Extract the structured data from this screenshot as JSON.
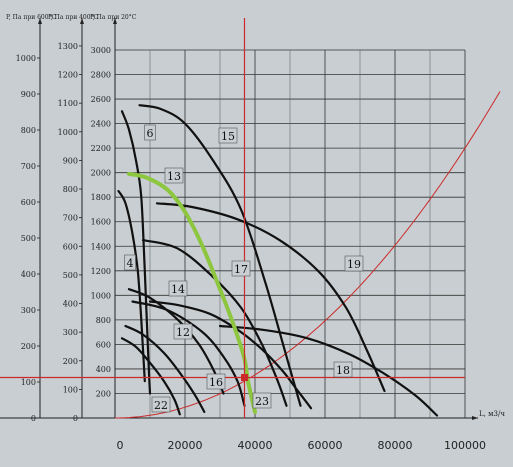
{
  "chart_data": {
    "type": "line",
    "title": "",
    "axes": {
      "y_headers": [
        "P, Па при 600°C",
        "P, Па при 400°C",
        "P, Па при 20°C"
      ],
      "y_ticks_600": [
        0,
        100,
        200,
        300,
        400,
        500,
        600,
        700,
        800,
        900,
        1000
      ],
      "y_ticks_400": [
        0,
        100,
        200,
        300,
        400,
        500,
        600,
        700,
        800,
        900,
        1000,
        1100,
        1200,
        1300
      ],
      "y_ticks_20": [
        200,
        400,
        600,
        800,
        1000,
        1200,
        1400,
        1600,
        1800,
        2000,
        2200,
        2400,
        2600,
        2800,
        3000
      ],
      "ylim_20": [
        0,
        3000
      ],
      "x_ticks": [
        0,
        20000,
        40000,
        60000,
        80000,
        100000
      ],
      "x_tick_labels": [
        "0",
        "20000",
        "40000",
        "60000",
        "80000",
        "100000"
      ],
      "xlim": [
        0,
        100000
      ],
      "xlabel": "L, м3/ч",
      "grid": true
    },
    "operating_point": {
      "x": 37000,
      "y": 330
    },
    "system_curve": {
      "name": "system",
      "k": 2.2e-07
    },
    "series": [
      {
        "label": "6",
        "points": [
          [
            2000,
            2500
          ],
          [
            4000,
            2350
          ],
          [
            6000,
            2100
          ],
          [
            7500,
            1800
          ],
          [
            8500,
            1200
          ],
          [
            9500,
            500
          ],
          [
            10000,
            200
          ]
        ]
      },
      {
        "label": "4",
        "points": [
          [
            1000,
            1850
          ],
          [
            3000,
            1750
          ],
          [
            5000,
            1500
          ],
          [
            6500,
            1200
          ],
          [
            7500,
            800
          ],
          [
            8500,
            300
          ]
        ]
      },
      {
        "label": "22",
        "points": [
          [
            2000,
            650
          ],
          [
            6000,
            580
          ],
          [
            10000,
            450
          ],
          [
            14000,
            300
          ],
          [
            17000,
            150
          ],
          [
            18500,
            30
          ]
        ]
      },
      {
        "label": "12",
        "points": [
          [
            3000,
            750
          ],
          [
            8000,
            680
          ],
          [
            14000,
            530
          ],
          [
            19000,
            350
          ],
          [
            23000,
            180
          ],
          [
            25500,
            50
          ]
        ]
      },
      {
        "label": "14",
        "points": [
          [
            4000,
            1050
          ],
          [
            10000,
            980
          ],
          [
            18000,
            800
          ],
          [
            24000,
            600
          ],
          [
            28000,
            400
          ],
          [
            31000,
            200
          ]
        ]
      },
      {
        "label": "16",
        "points": [
          [
            5000,
            950
          ],
          [
            15000,
            880
          ],
          [
            25000,
            700
          ],
          [
            31000,
            500
          ],
          [
            35000,
            300
          ],
          [
            37000,
            100
          ]
        ]
      },
      {
        "label": "17",
        "points": [
          [
            8000,
            1450
          ],
          [
            18000,
            1380
          ],
          [
            28000,
            1150
          ],
          [
            36000,
            900
          ],
          [
            42000,
            600
          ],
          [
            46500,
            300
          ],
          [
            49000,
            100
          ]
        ]
      },
      {
        "label": "15",
        "points": [
          [
            7000,
            2550
          ],
          [
            13000,
            2520
          ],
          [
            20000,
            2400
          ],
          [
            28000,
            2100
          ],
          [
            36000,
            1700
          ],
          [
            43000,
            1100
          ],
          [
            48500,
            550
          ],
          [
            53000,
            100
          ]
        ]
      },
      {
        "label": "23",
        "points": [
          [
            10000,
            950
          ],
          [
            18000,
            920
          ],
          [
            27000,
            850
          ],
          [
            35000,
            720
          ],
          [
            42000,
            560
          ],
          [
            48000,
            380
          ],
          [
            52000,
            230
          ],
          [
            56000,
            80
          ]
        ]
      },
      {
        "label": "19",
        "points": [
          [
            12000,
            1750
          ],
          [
            22000,
            1720
          ],
          [
            35000,
            1620
          ],
          [
            47000,
            1450
          ],
          [
            58000,
            1200
          ],
          [
            66000,
            900
          ],
          [
            72000,
            550
          ],
          [
            77000,
            220
          ]
        ]
      },
      {
        "label": "18",
        "points": [
          [
            30000,
            750
          ],
          [
            42000,
            720
          ],
          [
            55000,
            650
          ],
          [
            67000,
            520
          ],
          [
            77000,
            360
          ],
          [
            86000,
            180
          ],
          [
            92000,
            20
          ]
        ]
      },
      {
        "label": "13",
        "points": [
          [
            4000,
            1990
          ],
          [
            9000,
            1960
          ],
          [
            15000,
            1860
          ],
          [
            20000,
            1680
          ],
          [
            25000,
            1400
          ],
          [
            30000,
            1050
          ],
          [
            34000,
            750
          ],
          [
            37000,
            480
          ],
          [
            38000,
            300
          ],
          [
            40000,
            50
          ]
        ]
      }
    ]
  }
}
